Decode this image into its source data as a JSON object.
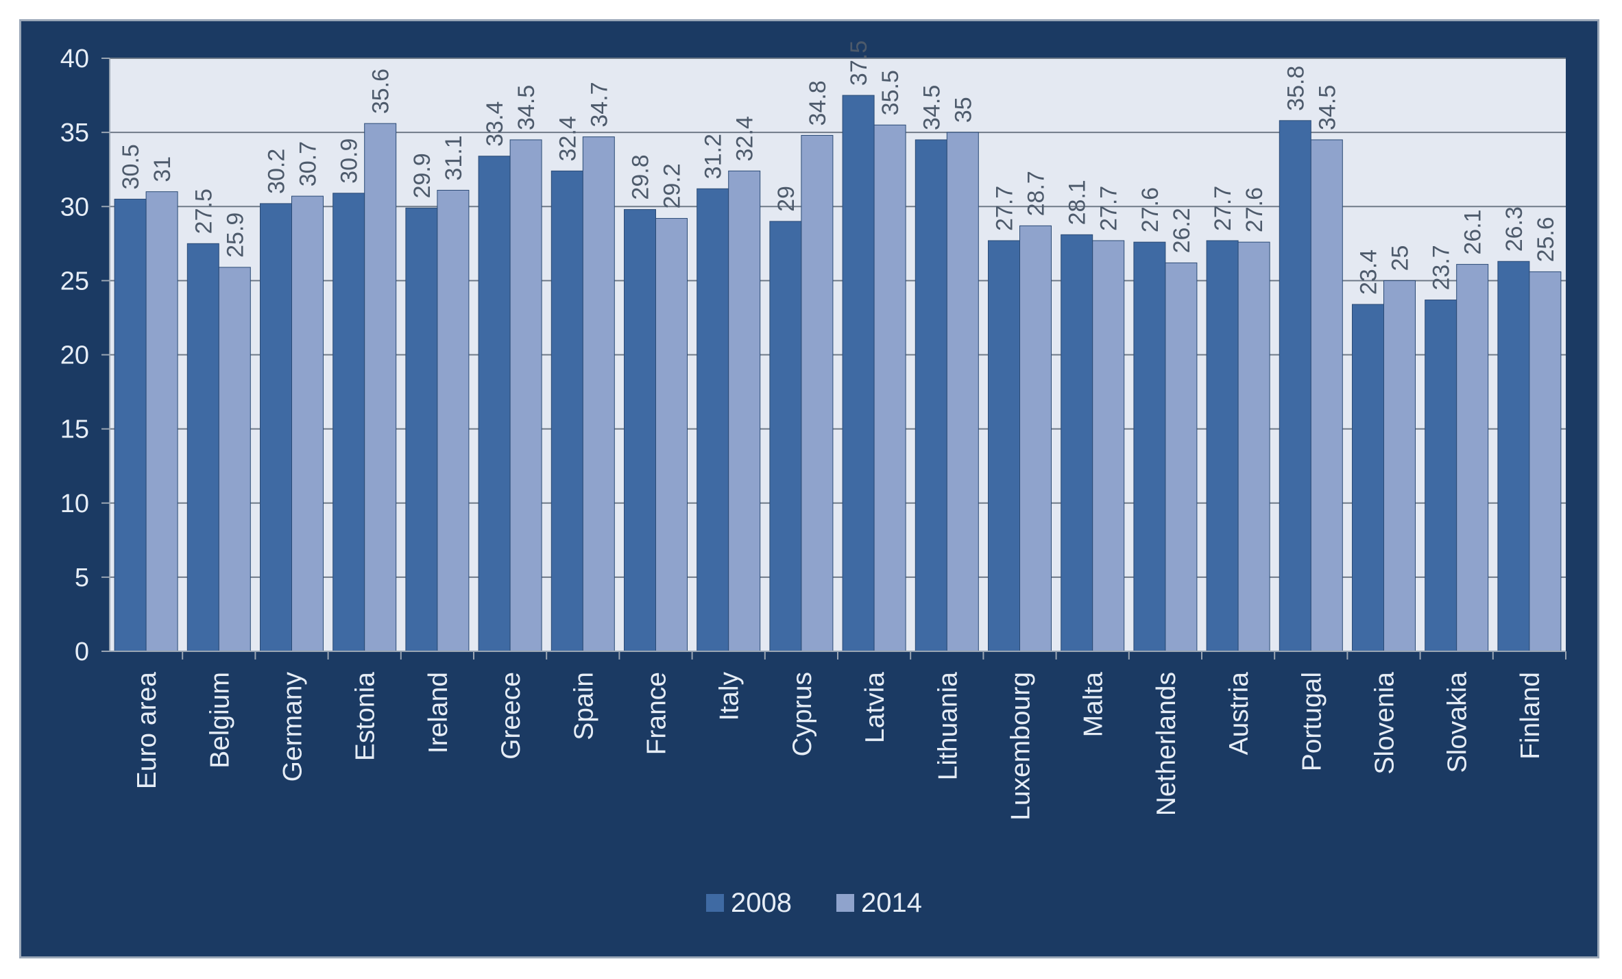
{
  "chart_data": {
    "type": "bar",
    "title": "",
    "xlabel": "",
    "ylabel": "",
    "ylim": [
      0,
      40
    ],
    "yticks": [
      0,
      5,
      10,
      15,
      20,
      25,
      30,
      35,
      40
    ],
    "categories": [
      "Euro area",
      "Belgium",
      "Germany",
      "Estonia",
      "Ireland",
      "Greece",
      "Spain",
      "France",
      "Italy",
      "Cyprus",
      "Latvia",
      "Lithuania",
      "Luxembourg",
      "Malta",
      "Netherlands",
      "Austria",
      "Portugal",
      "Slovenia",
      "Slovakia",
      "Finland"
    ],
    "series": [
      {
        "name": "2008",
        "color": "#3f6aa3",
        "values": [
          30.5,
          27.5,
          30.2,
          30.9,
          29.9,
          33.4,
          32.4,
          29.8,
          31.2,
          29,
          37.5,
          34.5,
          27.7,
          28.1,
          27.6,
          27.7,
          35.8,
          23.4,
          23.7,
          26.3
        ],
        "labels": [
          "30.5",
          "27.5",
          "30.2",
          "30.9",
          "29.9",
          "33.4",
          "32.4",
          "29.8",
          "31.2",
          "29",
          "37.5",
          "34.5",
          "27.7",
          "28.1",
          "27.6",
          "27.7",
          "35.8",
          "23.4",
          "23.7",
          "26.3"
        ]
      },
      {
        "name": "2014",
        "color": "#8fa3cc",
        "values": [
          31,
          25.9,
          30.7,
          35.6,
          31.1,
          34.5,
          34.7,
          29.2,
          32.4,
          34.8,
          35.5,
          35,
          28.7,
          27.7,
          26.2,
          27.6,
          34.5,
          25,
          26.1,
          25.6
        ],
        "labels": [
          "31",
          "25.9",
          "30.7",
          "35.6",
          "31.1",
          "34.5",
          "34.7",
          "29.2",
          "32.4",
          "34.8",
          "35.5",
          "35",
          "28.7",
          "27.7",
          "26.2",
          "27.6",
          "34.5",
          "25",
          "26.1",
          "25.6"
        ]
      }
    ],
    "legend_position": "bottom",
    "grid": true
  }
}
